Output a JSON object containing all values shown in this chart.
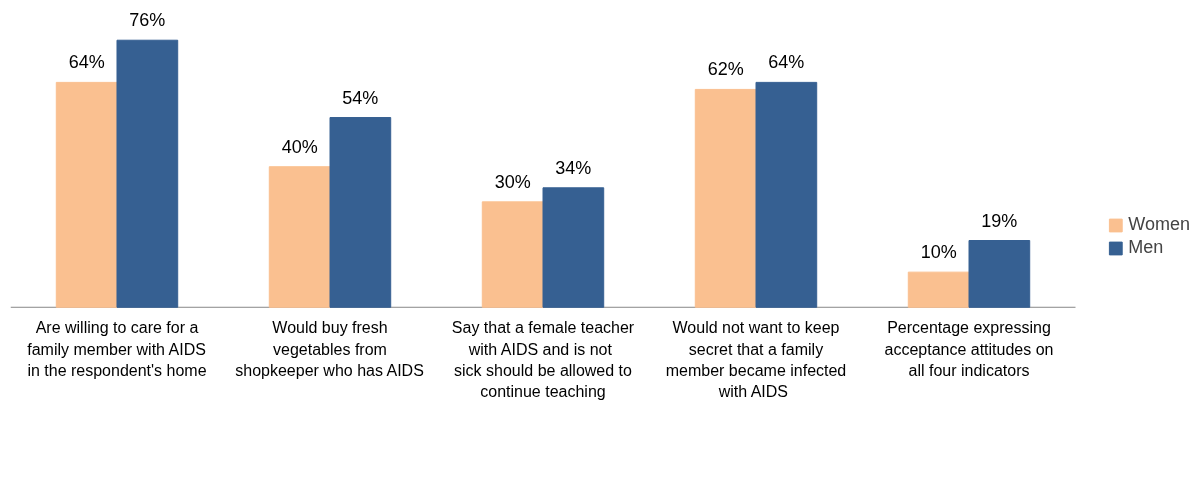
{
  "chart_data": {
    "type": "bar",
    "categories": [
      "Are willing to care for a family member with AIDS  in the respondent's home",
      "Would buy fresh vegetables from shopkeeper who has AIDS",
      "Say that a female teacher with AIDS  and is not sick should be allowed to continue teaching",
      "Would not want to keep secret that a family member became infected with  AIDS",
      "Percentage expressing acceptance attitudes on all four indicators"
    ],
    "series": [
      {
        "name": "Women",
        "color": "#fac090",
        "values": [
          64,
          40,
          30,
          62,
          10
        ],
        "value_labels": [
          "64%",
          "40%",
          "30%",
          "62%",
          "10%"
        ]
      },
      {
        "name": "Men",
        "color": "#366092",
        "values": [
          76,
          54,
          34,
          64,
          19
        ],
        "value_labels": [
          "76%",
          "54%",
          "34%",
          "64%",
          "19%"
        ]
      }
    ],
    "legend": "right",
    "grid": false
  }
}
